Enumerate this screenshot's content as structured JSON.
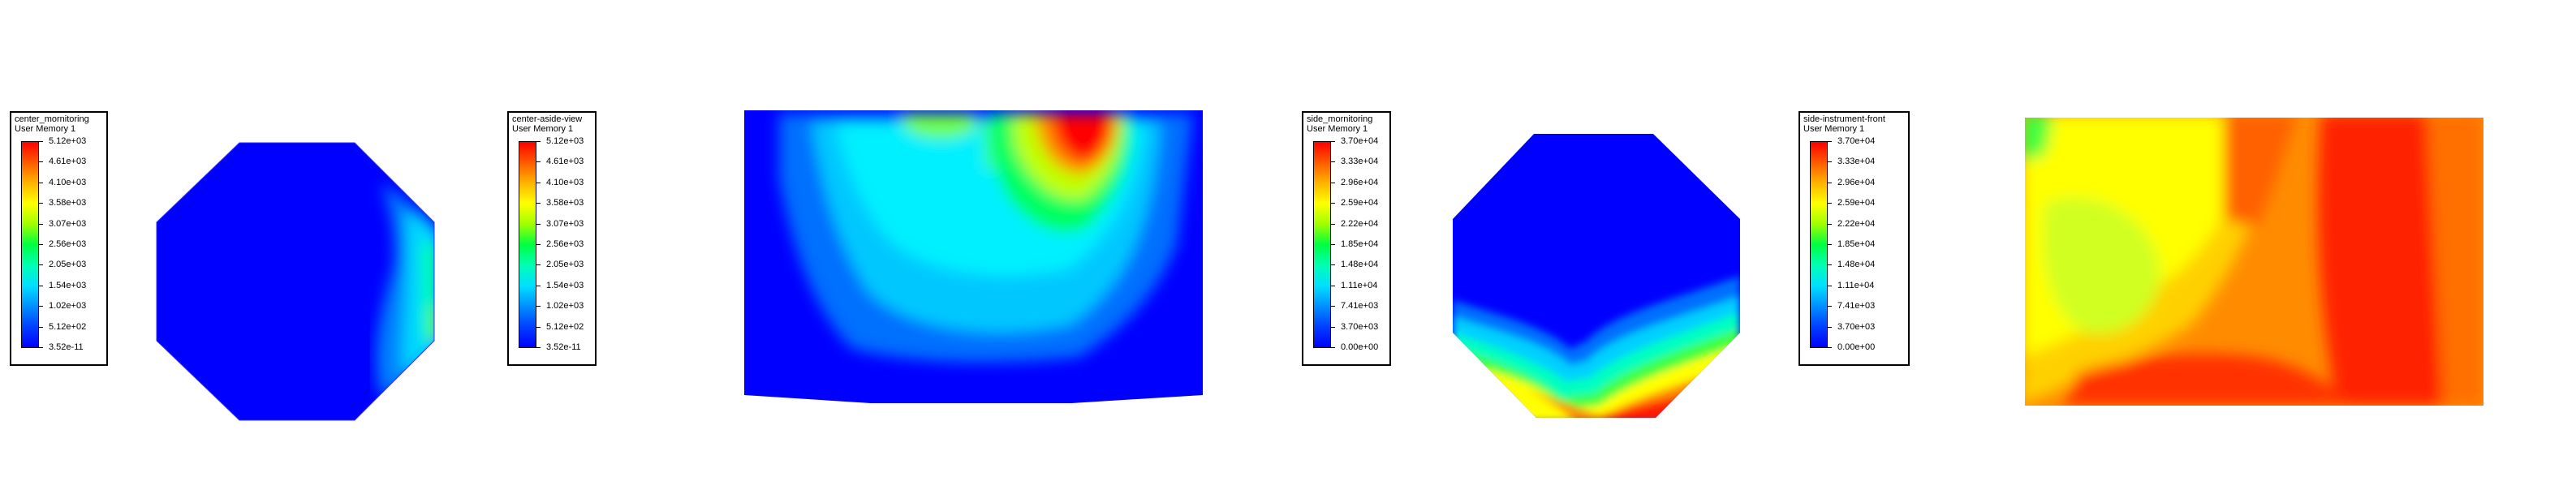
{
  "chart_data": [
    {
      "type": "heatmap",
      "legend_title": "center_mornitoring",
      "legend_subtitle": "User Memory 1",
      "scale_ticks": [
        "5.12e+03",
        "4.61e+03",
        "4.10e+03",
        "3.58e+03",
        "3.07e+03",
        "2.56e+03",
        "2.05e+03",
        "1.54e+03",
        "1.02e+03",
        "5.12e+02",
        "3.52e-11"
      ],
      "view": "octagon cross-section",
      "field_summary": "Mostly minimum (blue); cyan-green band along right edge"
    },
    {
      "type": "heatmap",
      "legend_title": "center-aside-view",
      "legend_subtitle": "User Memory 1",
      "scale_ticks": [
        "5.12e+03",
        "4.61e+03",
        "4.10e+03",
        "3.58e+03",
        "3.07e+03",
        "2.56e+03",
        "2.05e+03",
        "1.54e+03",
        "1.02e+03",
        "5.12e+02",
        "3.52e-11"
      ],
      "view": "side section",
      "field_summary": "Blue background, cyan central region, red-yellow hotspot at top right"
    },
    {
      "type": "heatmap",
      "legend_title": "side_mornitoring",
      "legend_subtitle": "User Memory 1",
      "scale_ticks": [
        "3.70e+04",
        "3.33e+04",
        "2.96e+04",
        "2.59e+04",
        "2.22e+04",
        "1.85e+04",
        "1.48e+04",
        "1.11e+04",
        "7.41e+03",
        "3.70e+03",
        "0.00e+00"
      ],
      "view": "octagon cross-section",
      "field_summary": "Blue upper region, V-shaped green-yellow band, red at bottom"
    },
    {
      "type": "heatmap",
      "legend_title": "side-instrument-front",
      "legend_subtitle": "User Memory 1",
      "scale_ticks": [
        "3.70e+04",
        "3.33e+04",
        "2.96e+04",
        "2.59e+04",
        "2.22e+04",
        "1.85e+04",
        "1.48e+04",
        "1.11e+04",
        "7.41e+03",
        "3.70e+03",
        "0.00e+00"
      ],
      "view": "front section",
      "field_summary": "Yellow-green left, orange-red across center and right"
    }
  ],
  "colors": {
    "rainbow": [
      "#ff0000",
      "#ff5a00",
      "#ffb400",
      "#ffff00",
      "#a0ff00",
      "#00ff40",
      "#00ffb4",
      "#00e0ff",
      "#0090ff",
      "#0040ff",
      "#0000ff"
    ],
    "blue": "#0000ff",
    "cyan": "#00e5ff",
    "green": "#00ff40",
    "yellow": "#ffff00",
    "orange": "#ff8c00",
    "red": "#ff0000"
  }
}
